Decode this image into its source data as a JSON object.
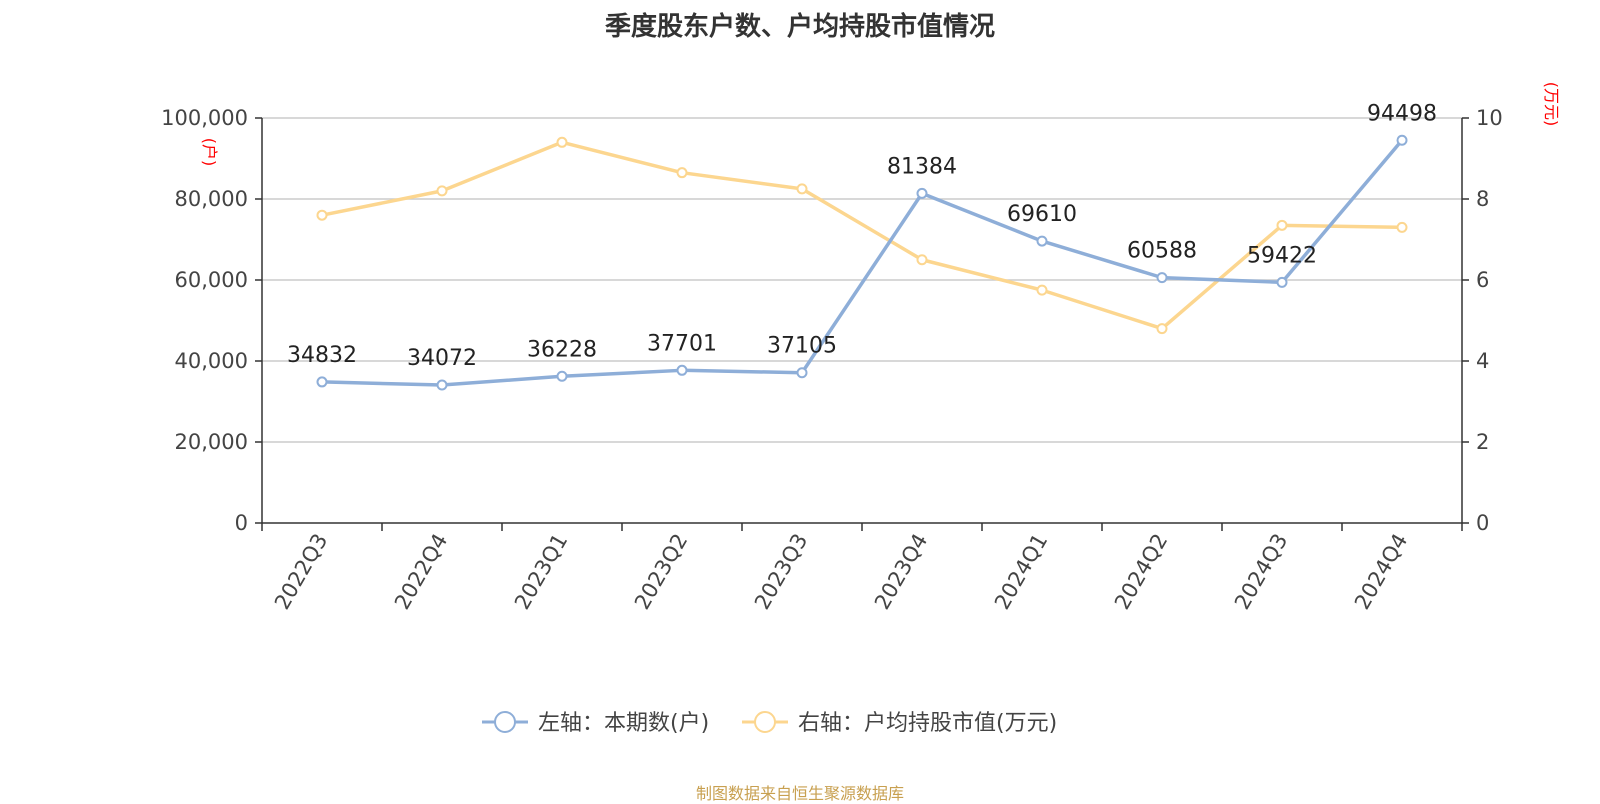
{
  "chart_data": {
    "type": "line",
    "title": "季度股东户数、户均持股市值情况",
    "categories": [
      "2022Q3",
      "2022Q4",
      "2023Q1",
      "2023Q2",
      "2023Q3",
      "2023Q4",
      "2024Q1",
      "2024Q2",
      "2024Q3",
      "2024Q4"
    ],
    "left_axis": {
      "unit_label": "(户)",
      "ylim": [
        0,
        100000
      ],
      "ticks": [
        "0",
        "20,000",
        "40,000",
        "60,000",
        "80,000",
        "100,000"
      ],
      "tick_values": [
        0,
        20000,
        40000,
        60000,
        80000,
        100000
      ]
    },
    "right_axis": {
      "unit_label": "(万元)",
      "ylim": [
        0,
        10
      ],
      "ticks": [
        "0",
        "2",
        "4",
        "6",
        "8",
        "10"
      ],
      "tick_values": [
        0,
        2,
        4,
        6,
        8,
        10
      ]
    },
    "series": [
      {
        "name": "左轴：本期数(户)",
        "axis": "left",
        "color": "#8eaed8",
        "values": [
          34832,
          34072,
          36228,
          37701,
          37105,
          81384,
          69610,
          60588,
          59422,
          94498
        ],
        "labels": [
          "34832",
          "34072",
          "36228",
          "37701",
          "37105",
          "81384",
          "69610",
          "60588",
          "59422",
          "94498"
        ]
      },
      {
        "name": "右轴：户均持股市值(万元)",
        "axis": "right",
        "color": "#fcd68f",
        "values": [
          7.6,
          8.2,
          9.4,
          8.65,
          8.25,
          6.5,
          5.75,
          4.8,
          7.35,
          7.3
        ]
      }
    ],
    "grid": true,
    "legend_position": "bottom-center",
    "unit_label_color": "#ff0000",
    "source": "制图数据来自恒生聚源数据库"
  }
}
